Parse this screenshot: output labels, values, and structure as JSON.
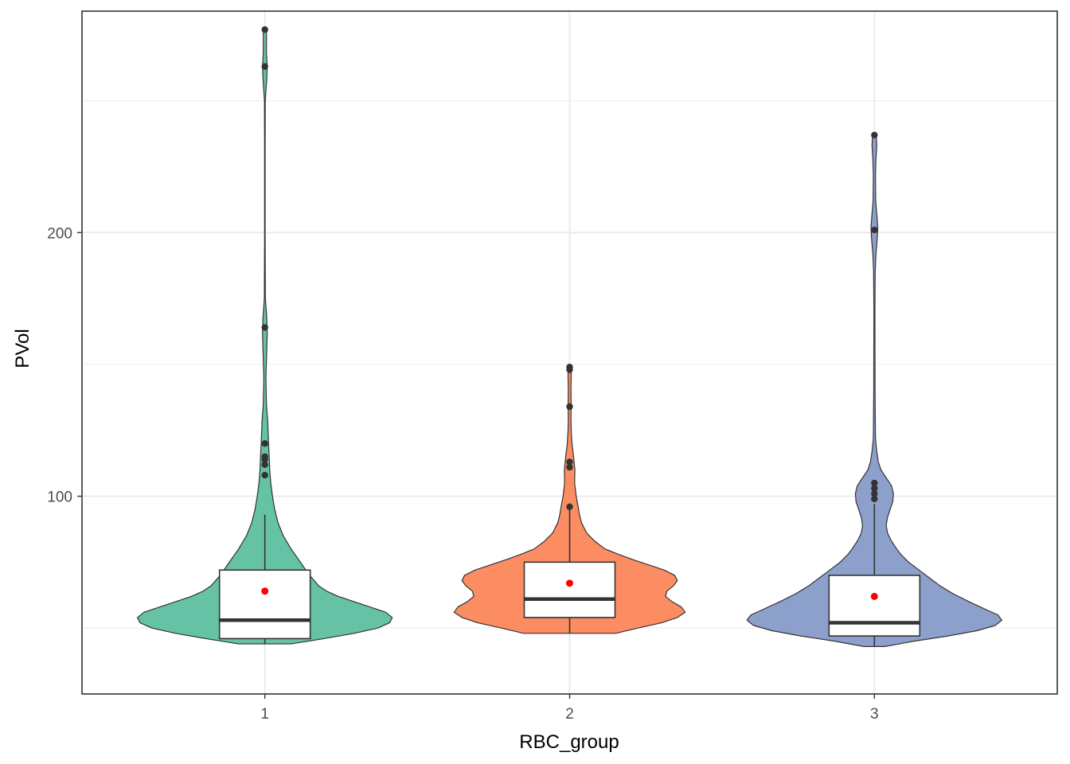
{
  "chart_data": {
    "type": "violin",
    "title": "",
    "xlabel": "RBC_group",
    "ylabel": "PVol",
    "categories": [
      "1",
      "2",
      "3"
    ],
    "ylim": [
      25,
      284
    ],
    "yticks": [
      100,
      200
    ],
    "grid": true,
    "legend": "none",
    "colors": {
      "1": "#66c2a5",
      "2": "#fc8d62",
      "3": "#8da0cb",
      "mean_point": "#ff0000",
      "outlier": "#333333",
      "outline": "#333333",
      "grid": "#ebebeb",
      "panel_border": "#333333"
    },
    "series": [
      {
        "group": "1",
        "violin_range": [
          44,
          277
        ],
        "box": {
          "q1": 46,
          "median": 53,
          "q3": 72,
          "whisker_low": 44,
          "whisker_high": 93
        },
        "mean": 64,
        "outliers": [
          108,
          112,
          114,
          115,
          120,
          164,
          263,
          277
        ],
        "density": [
          [
            44,
            0.2
          ],
          [
            46,
            0.45
          ],
          [
            48,
            0.68
          ],
          [
            50,
            0.86
          ],
          [
            52,
            0.95
          ],
          [
            54,
            0.97
          ],
          [
            56,
            0.92
          ],
          [
            58,
            0.8
          ],
          [
            60,
            0.68
          ],
          [
            62,
            0.56
          ],
          [
            64,
            0.47
          ],
          [
            66,
            0.41
          ],
          [
            70,
            0.34
          ],
          [
            75,
            0.27
          ],
          [
            80,
            0.2
          ],
          [
            85,
            0.14
          ],
          [
            90,
            0.1
          ],
          [
            95,
            0.075
          ],
          [
            100,
            0.058
          ],
          [
            105,
            0.045
          ],
          [
            110,
            0.037
          ],
          [
            115,
            0.033
          ],
          [
            120,
            0.028
          ],
          [
            128,
            0.022
          ],
          [
            135,
            0.012
          ],
          [
            145,
            0.008
          ],
          [
            155,
            0.014
          ],
          [
            162,
            0.018
          ],
          [
            168,
            0.014
          ],
          [
            175,
            0.004
          ],
          [
            200,
            0.002
          ],
          [
            230,
            0.002
          ],
          [
            250,
            0.003
          ],
          [
            258,
            0.014
          ],
          [
            263,
            0.018
          ],
          [
            268,
            0.012
          ],
          [
            277,
            0.012
          ]
        ]
      },
      {
        "group": "2",
        "violin_range": [
          48,
          149
        ],
        "box": {
          "q1": 54,
          "median": 61,
          "q3": 75,
          "whisker_low": 48,
          "whisker_high": 96
        },
        "mean": 67,
        "outliers": [
          96,
          111,
          113,
          134,
          148,
          149
        ],
        "density": [
          [
            48,
            0.35
          ],
          [
            50,
            0.52
          ],
          [
            52,
            0.7
          ],
          [
            54,
            0.82
          ],
          [
            56,
            0.88
          ],
          [
            58,
            0.85
          ],
          [
            60,
            0.78
          ],
          [
            62,
            0.73
          ],
          [
            64,
            0.74
          ],
          [
            66,
            0.79
          ],
          [
            68,
            0.82
          ],
          [
            70,
            0.8
          ],
          [
            72,
            0.72
          ],
          [
            74,
            0.6
          ],
          [
            76,
            0.48
          ],
          [
            78,
            0.37
          ],
          [
            80,
            0.27
          ],
          [
            83,
            0.19
          ],
          [
            86,
            0.13
          ],
          [
            90,
            0.09
          ],
          [
            93,
            0.075
          ],
          [
            96,
            0.065
          ],
          [
            100,
            0.05
          ],
          [
            105,
            0.038
          ],
          [
            110,
            0.04
          ],
          [
            115,
            0.03
          ],
          [
            120,
            0.018
          ],
          [
            125,
            0.012
          ],
          [
            130,
            0.01
          ],
          [
            134,
            0.012
          ],
          [
            140,
            0.01
          ],
          [
            145,
            0.012
          ],
          [
            149,
            0.012
          ]
        ]
      },
      {
        "group": "3",
        "violin_range": [
          43,
          237
        ],
        "box": {
          "q1": 47,
          "median": 52,
          "q3": 70,
          "whisker_low": 43,
          "whisker_high": 97
        },
        "mean": 62,
        "outliers": [
          99,
          101,
          103,
          105,
          201,
          237
        ],
        "density": [
          [
            43,
            0.08
          ],
          [
            45,
            0.3
          ],
          [
            47,
            0.56
          ],
          [
            49,
            0.78
          ],
          [
            51,
            0.92
          ],
          [
            53,
            0.97
          ],
          [
            55,
            0.94
          ],
          [
            57,
            0.85
          ],
          [
            60,
            0.72
          ],
          [
            63,
            0.6
          ],
          [
            66,
            0.5
          ],
          [
            69,
            0.42
          ],
          [
            72,
            0.34
          ],
          [
            75,
            0.26
          ],
          [
            78,
            0.2
          ],
          [
            80,
            0.17
          ],
          [
            83,
            0.13
          ],
          [
            86,
            0.1
          ],
          [
            89,
            0.09
          ],
          [
            92,
            0.1
          ],
          [
            95,
            0.12
          ],
          [
            98,
            0.14
          ],
          [
            101,
            0.145
          ],
          [
            104,
            0.13
          ],
          [
            107,
            0.09
          ],
          [
            110,
            0.05
          ],
          [
            113,
            0.03
          ],
          [
            117,
            0.018
          ],
          [
            122,
            0.008
          ],
          [
            140,
            0.005
          ],
          [
            170,
            0.004
          ],
          [
            185,
            0.006
          ],
          [
            192,
            0.012
          ],
          [
            198,
            0.022
          ],
          [
            202,
            0.026
          ],
          [
            206,
            0.02
          ],
          [
            212,
            0.01
          ],
          [
            222,
            0.008
          ],
          [
            228,
            0.012
          ],
          [
            233,
            0.018
          ],
          [
            237,
            0.014
          ]
        ]
      }
    ]
  }
}
